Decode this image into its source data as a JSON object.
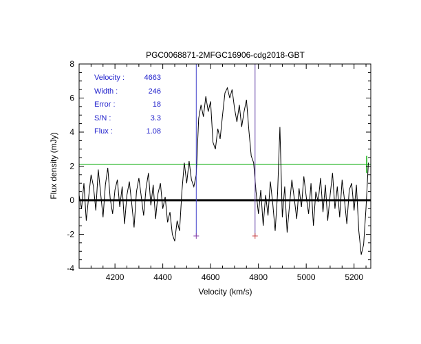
{
  "annotations": {
    "color": "#2222cc",
    "rows": [
      {
        "label": "Velocity :",
        "value": "4663"
      },
      {
        "label": "Width :",
        "value": "246"
      },
      {
        "label": "Error :",
        "value": "18"
      },
      {
        "label": "S/N :",
        "value": "3.3"
      },
      {
        "label": "Flux :",
        "value": "1.08"
      }
    ]
  },
  "chart_data": {
    "type": "line",
    "title": "PGC0068871-2MFGC16906-cdg2018-GBT",
    "xlabel": "Velocity (km/s)",
    "ylabel": "Flux density (mJy)",
    "xlim": [
      4050,
      5270
    ],
    "ylim": [
      -4,
      8
    ],
    "x_ticks": [
      4200,
      4400,
      4600,
      4800,
      5000,
      5200
    ],
    "x_minor_step": 50,
    "y_ticks": [
      8,
      6,
      4,
      2,
      0,
      -2,
      -4
    ],
    "y_minor_step": 0.5,
    "grid": false,
    "baseline": {
      "y": 0,
      "color": "#000000",
      "width": 3
    },
    "threshold_line": {
      "y": 2.1,
      "color": "#00aa00",
      "cap": {
        "x": 5253,
        "y1": 1.6,
        "y2": 2.6
      }
    },
    "markers": [
      {
        "x": 4540,
        "y_top": 8,
        "y_bottom": -2.1,
        "line_color": "#4444cc",
        "plus_color": "#8844aa"
      },
      {
        "x": 4786,
        "y_top": 8,
        "y_bottom": -2.1,
        "line_color": "#6644aa",
        "plus_color": "#cc4444"
      }
    ],
    "series": [
      {
        "name": "spectrum",
        "color": "#000000",
        "x": [
          4050,
          4060,
          4070,
          4080,
          4090,
          4100,
          4110,
          4120,
          4130,
          4140,
          4150,
          4160,
          4170,
          4180,
          4190,
          4200,
          4210,
          4220,
          4230,
          4240,
          4250,
          4260,
          4270,
          4280,
          4290,
          4300,
          4310,
          4320,
          4330,
          4340,
          4350,
          4360,
          4370,
          4380,
          4390,
          4400,
          4410,
          4420,
          4430,
          4440,
          4450,
          4460,
          4470,
          4480,
          4490,
          4500,
          4510,
          4520,
          4530,
          4540,
          4550,
          4560,
          4570,
          4580,
          4590,
          4600,
          4610,
          4620,
          4630,
          4640,
          4650,
          4660,
          4670,
          4680,
          4690,
          4700,
          4710,
          4720,
          4730,
          4740,
          4750,
          4760,
          4770,
          4780,
          4790,
          4800,
          4810,
          4820,
          4830,
          4840,
          4850,
          4860,
          4870,
          4880,
          4890,
          4900,
          4910,
          4920,
          4930,
          4940,
          4950,
          4960,
          4970,
          4980,
          4990,
          5000,
          5010,
          5020,
          5030,
          5040,
          5050,
          5060,
          5070,
          5080,
          5090,
          5100,
          5110,
          5120,
          5130,
          5140,
          5150,
          5160,
          5170,
          5180,
          5190,
          5200,
          5210,
          5220,
          5230,
          5240,
          5250,
          5260
        ],
        "y": [
          0.3,
          -0.5,
          1.0,
          -1.2,
          0.2,
          1.5,
          0.8,
          -0.6,
          1.8,
          0.4,
          -1.0,
          0.9,
          1.9,
          0.1,
          -0.8,
          0.6,
          1.2,
          -0.4,
          0.8,
          -1.4,
          0.3,
          1.1,
          -0.2,
          -1.6,
          0.5,
          1.3,
          0.2,
          -0.9,
          0.7,
          1.6,
          -0.3,
          0.9,
          -1.1,
          0.4,
          1.0,
          -0.5,
          0.2,
          -1.3,
          -0.7,
          -2.0,
          -2.4,
          -1.2,
          -1.8,
          0.5,
          2.2,
          1.0,
          2.3,
          1.2,
          0.8,
          1.5,
          4.8,
          5.6,
          4.9,
          6.1,
          5.2,
          5.8,
          3.4,
          3.0,
          4.2,
          3.6,
          5.0,
          6.3,
          6.6,
          6.0,
          6.5,
          5.4,
          4.6,
          5.6,
          4.3,
          5.2,
          5.9,
          4.1,
          2.6,
          2.2,
          0.5,
          -0.8,
          0.6,
          -1.5,
          0.3,
          -0.9,
          1.1,
          -0.2,
          -1.8,
          0.4,
          4.3,
          -1.0,
          0.8,
          -1.9,
          -0.3,
          1.2,
          0.1,
          -1.1,
          0.7,
          -0.4,
          1.4,
          0.2,
          -0.8,
          1.0,
          -1.5,
          0.5,
          -0.1,
          1.3,
          -0.7,
          0.9,
          -1.2,
          0.3,
          1.6,
          -0.5,
          0.8,
          -1.0,
          1.2,
          0.0,
          -1.4,
          0.6,
          1.0,
          -0.6,
          0.9,
          -1.8,
          -3.2,
          -2.6,
          -0.5,
          2.2
        ]
      }
    ]
  }
}
